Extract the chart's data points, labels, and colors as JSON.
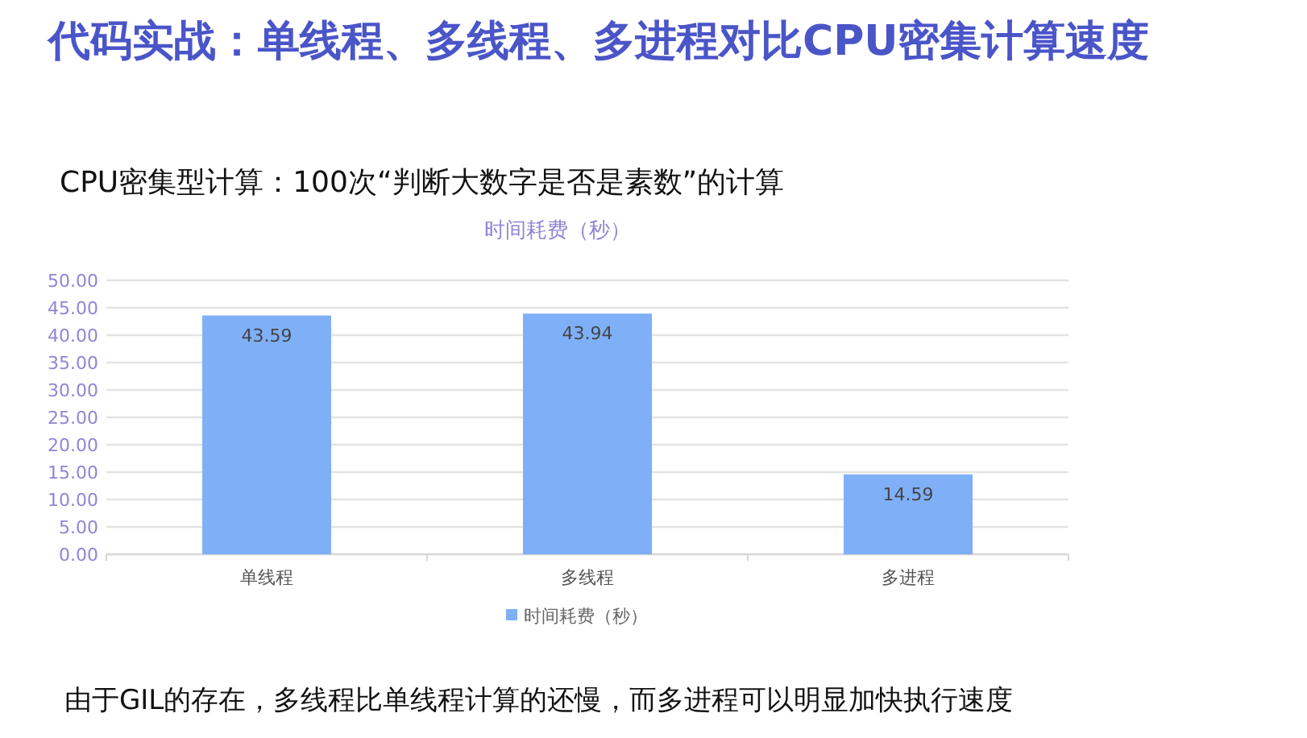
{
  "chart_data": {
    "type": "bar",
    "title": "代码实战：单线程、多线程、多进程对比CPU密集计算速度",
    "subtitle": "CPU密集型计算：100次“判断大数字是否是素数”的计算",
    "categories": [
      "单线程",
      "多线程",
      "多进程"
    ],
    "series": [
      {
        "name": "时间耗费（秒）",
        "color": "#7fb0f7",
        "values": [
          43.59,
          43.94,
          14.59
        ]
      }
    ],
    "ylim": [
      0,
      50
    ],
    "yticks": [
      {
        "value": 0,
        "label": "0.00"
      },
      {
        "value": 5,
        "label": "5.00"
      },
      {
        "value": 10,
        "label": "10.00"
      },
      {
        "value": 15,
        "label": "15.00"
      },
      {
        "value": 20,
        "label": "20.00"
      },
      {
        "value": 25,
        "label": "25.00"
      },
      {
        "value": 30,
        "label": "30.00"
      },
      {
        "value": 35,
        "label": "35.00"
      },
      {
        "value": 40,
        "label": "40.00"
      },
      {
        "value": 45,
        "label": "45.00"
      },
      {
        "value": 50,
        "label": "50.00"
      }
    ],
    "grid": "y",
    "legend": "bottom",
    "data_labels": true,
    "annotations": [
      "时间耗费（秒）",
      "由于GIL的存在，多线程比单线程计算的还慢，而多进程可以明显加快执行速度"
    ]
  }
}
